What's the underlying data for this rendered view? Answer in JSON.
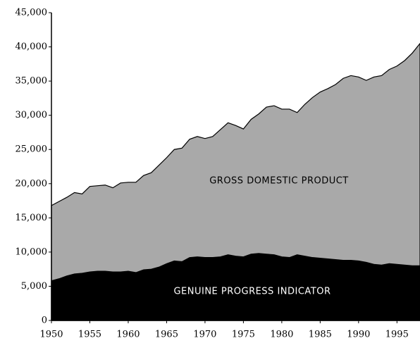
{
  "chart_data": {
    "type": "area",
    "x": [
      1950,
      1951,
      1952,
      1953,
      1954,
      1955,
      1956,
      1957,
      1958,
      1959,
      1960,
      1961,
      1962,
      1963,
      1964,
      1965,
      1966,
      1967,
      1968,
      1969,
      1970,
      1971,
      1972,
      1973,
      1974,
      1975,
      1976,
      1977,
      1978,
      1979,
      1980,
      1981,
      1982,
      1983,
      1984,
      1985,
      1986,
      1987,
      1988,
      1989,
      1990,
      1991,
      1992,
      1993,
      1994,
      1995,
      1996,
      1997,
      1998
    ],
    "series": [
      {
        "name": "GROSS DOMESTIC PRODUCT",
        "color": "#a9a9a9",
        "values": [
          16800,
          17400,
          18000,
          18700,
          18500,
          19600,
          19700,
          19800,
          19400,
          20100,
          20200,
          20200,
          21200,
          21600,
          22700,
          23800,
          25000,
          25200,
          26500,
          26900,
          26600,
          26900,
          27900,
          28900,
          28500,
          28000,
          29400,
          30200,
          31200,
          31400,
          30900,
          30900,
          30400,
          31600,
          32600,
          33400,
          33900,
          34500,
          35400,
          35800,
          35600,
          35100,
          35600,
          35800,
          36700,
          37200,
          38000,
          39100,
          40500
        ]
      },
      {
        "name": "GENUINE PROGRESS INDICATOR",
        "color": "#000000",
        "values": [
          5800,
          6100,
          6500,
          6800,
          6900,
          7100,
          7200,
          7200,
          7100,
          7100,
          7200,
          7000,
          7400,
          7500,
          7800,
          8300,
          8700,
          8600,
          9200,
          9300,
          9200,
          9200,
          9300,
          9600,
          9400,
          9300,
          9700,
          9800,
          9700,
          9600,
          9300,
          9200,
          9600,
          9400,
          9200,
          9100,
          9000,
          8900,
          8800,
          8800,
          8700,
          8500,
          8200,
          8100,
          8300,
          8200,
          8100,
          8000,
          8000
        ]
      }
    ],
    "xlim": [
      1950,
      1998
    ],
    "xticks": [
      1950,
      1955,
      1960,
      1965,
      1970,
      1975,
      1980,
      1985,
      1990,
      1995
    ],
    "ylim": [
      0,
      45000
    ],
    "yticks": [
      0,
      {
        "value": 5000,
        "label": "5,000"
      },
      {
        "value": 10000,
        "label": "10,000"
      },
      {
        "value": 15000,
        "label": "15,000"
      },
      {
        "value": 20000,
        "label": "20,000"
      },
      {
        "value": 25000,
        "label": "25,000"
      },
      {
        "value": 30000,
        "label": "30,000"
      },
      {
        "value": 35000,
        "label": "35,000"
      },
      {
        "value": 40000,
        "label": "40,000"
      },
      {
        "value": 45000,
        "label": "45,000"
      }
    ]
  }
}
